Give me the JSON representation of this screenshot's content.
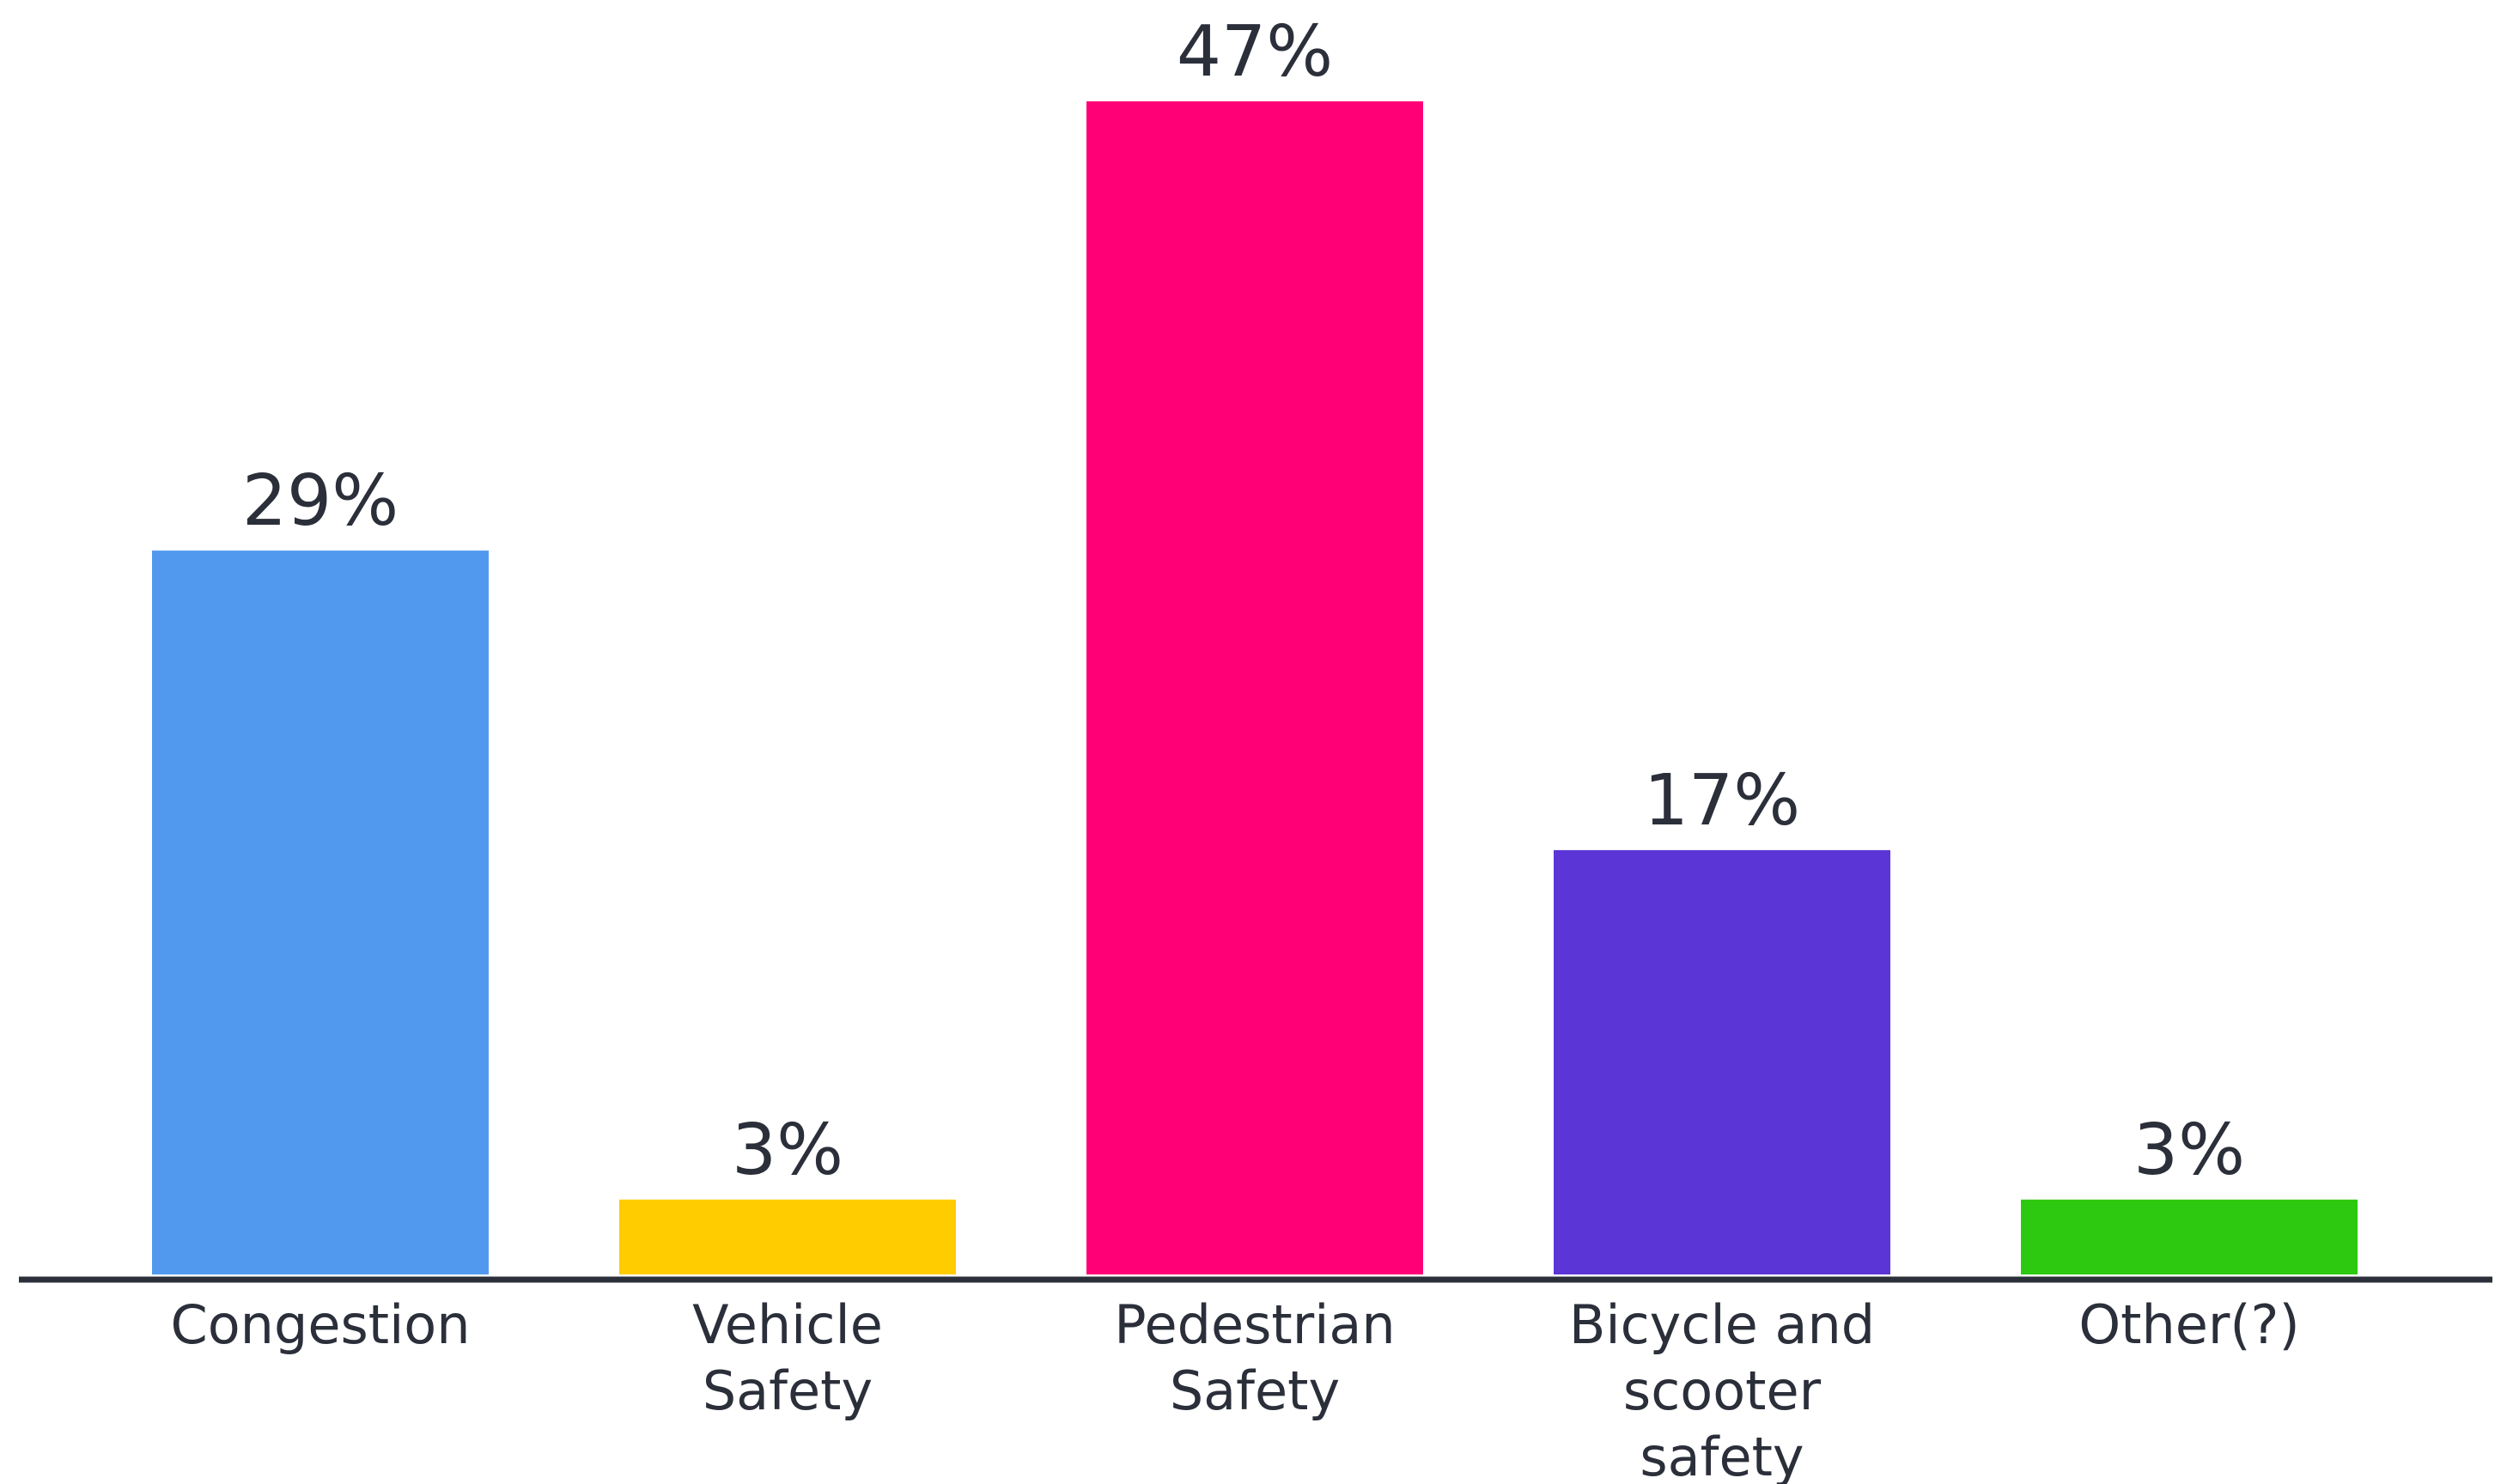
{
  "chart_data": {
    "type": "bar",
    "categories": [
      [
        "Congestion"
      ],
      [
        "Vehicle",
        "Safety"
      ],
      [
        "Pedestrian",
        "Safety"
      ],
      [
        "Bicycle and",
        "scooter",
        "safety"
      ],
      [
        "Other(?)"
      ]
    ],
    "values": [
      29,
      3,
      47,
      17,
      3
    ],
    "value_labels": [
      "29%",
      "3%",
      "47%",
      "17%",
      "3%"
    ],
    "colors": [
      "#5199ee",
      "#ffcc00",
      "#ff0077",
      "#5c35d6",
      "#2dc810"
    ],
    "axis_color": "#2b2f3a",
    "title": "",
    "xlabel": "",
    "ylabel": "",
    "ylim": [
      0,
      47
    ],
    "grid": false,
    "legend": "none"
  }
}
